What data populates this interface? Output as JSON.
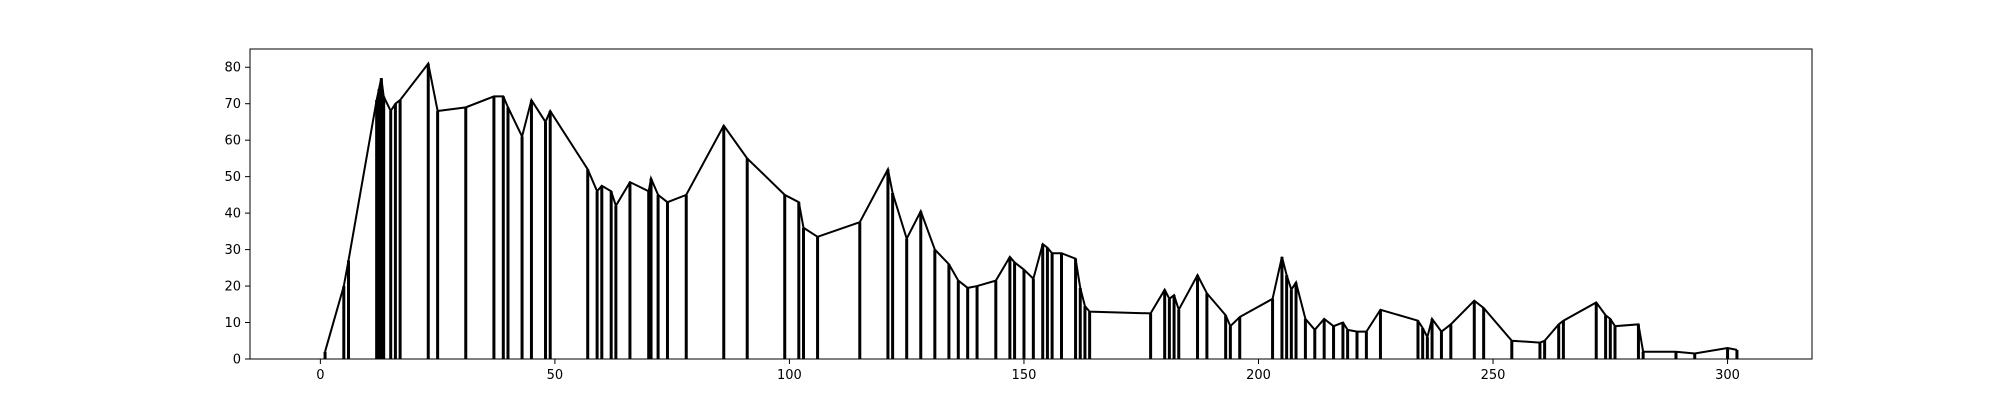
{
  "chart_data": {
    "type": "bar",
    "title": "",
    "xlabel": "",
    "ylabel": "",
    "xlim": [
      -15,
      318
    ],
    "ylim": [
      0,
      85
    ],
    "grid": false,
    "xticks": [
      0,
      50,
      100,
      150,
      200,
      250,
      300
    ],
    "xtick_labels": [
      "0",
      "50",
      "100",
      "150",
      "200",
      "250",
      "300"
    ],
    "yticks": [
      0,
      10,
      20,
      30,
      40,
      50,
      60,
      70,
      80
    ],
    "ytick_labels": [
      "0",
      "10",
      "20",
      "30",
      "40",
      "50",
      "60",
      "70",
      "80"
    ],
    "colors": {
      "line": "#000000",
      "bars": "#000000",
      "frame": "#000000"
    },
    "series": [
      {
        "style": "stems with connecting line",
        "points": [
          [
            1,
            2
          ],
          [
            5,
            20
          ],
          [
            6,
            27
          ],
          [
            12,
            71
          ],
          [
            12.5,
            74
          ],
          [
            13,
            77
          ],
          [
            13.5,
            72
          ],
          [
            15,
            68
          ],
          [
            16,
            70
          ],
          [
            17,
            71
          ],
          [
            23,
            81
          ],
          [
            25,
            68
          ],
          [
            31,
            69
          ],
          [
            37,
            72
          ],
          [
            39,
            72
          ],
          [
            40,
            69
          ],
          [
            43,
            61
          ],
          [
            45,
            71
          ],
          [
            48,
            65
          ],
          [
            49,
            68
          ],
          [
            57,
            52
          ],
          [
            59,
            46
          ],
          [
            60,
            47.5
          ],
          [
            62,
            46
          ],
          [
            63,
            42
          ],
          [
            66,
            48.5
          ],
          [
            70,
            46
          ],
          [
            70.5,
            49.5
          ],
          [
            72,
            45
          ],
          [
            74,
            43
          ],
          [
            78,
            45
          ],
          [
            86,
            64
          ],
          [
            91,
            55
          ],
          [
            99,
            45
          ],
          [
            102,
            43
          ],
          [
            103,
            36
          ],
          [
            106,
            33.5
          ],
          [
            115,
            37.5
          ],
          [
            121,
            52
          ],
          [
            122,
            45.5
          ],
          [
            125,
            33
          ],
          [
            128,
            40.5
          ],
          [
            131,
            30
          ],
          [
            134,
            26
          ],
          [
            136,
            21.5
          ],
          [
            138,
            19.5
          ],
          [
            140,
            20
          ],
          [
            144,
            21.5
          ],
          [
            147,
            28
          ],
          [
            148,
            26.5
          ],
          [
            150,
            24.5
          ],
          [
            152,
            22
          ],
          [
            154,
            31.5
          ],
          [
            155,
            30.5
          ],
          [
            156,
            29
          ],
          [
            158,
            29
          ],
          [
            161,
            27.5
          ],
          [
            162,
            19.5
          ],
          [
            163,
            14.5
          ],
          [
            164,
            13
          ],
          [
            177,
            12.5
          ],
          [
            180,
            19
          ],
          [
            181,
            16.5
          ],
          [
            182,
            17.5
          ],
          [
            183,
            13.5
          ],
          [
            187,
            23
          ],
          [
            189,
            18
          ],
          [
            193,
            12
          ],
          [
            194,
            9
          ],
          [
            196,
            11.5
          ],
          [
            203,
            16.5
          ],
          [
            205,
            28
          ],
          [
            206,
            23
          ],
          [
            207,
            19
          ],
          [
            208,
            21
          ],
          [
            210,
            11
          ],
          [
            212,
            8
          ],
          [
            214,
            11
          ],
          [
            216,
            9
          ],
          [
            218,
            10
          ],
          [
            219,
            8
          ],
          [
            221,
            7.5
          ],
          [
            223,
            7.5
          ],
          [
            226,
            13.5
          ],
          [
            234,
            10.5
          ],
          [
            235,
            8.5
          ],
          [
            236,
            6
          ],
          [
            237,
            11
          ],
          [
            239,
            7.5
          ],
          [
            241,
            9.5
          ],
          [
            246,
            16
          ],
          [
            248,
            14
          ],
          [
            254,
            5
          ],
          [
            260,
            4.5
          ],
          [
            261,
            5
          ],
          [
            264,
            9.5
          ],
          [
            265,
            10.5
          ],
          [
            272,
            15.5
          ],
          [
            274,
            12
          ],
          [
            275,
            11
          ],
          [
            276,
            9
          ],
          [
            281,
            9.5
          ],
          [
            282,
            2
          ],
          [
            289,
            2
          ],
          [
            293,
            1.5
          ],
          [
            300,
            3
          ],
          [
            302,
            2.5
          ]
        ]
      }
    ]
  }
}
